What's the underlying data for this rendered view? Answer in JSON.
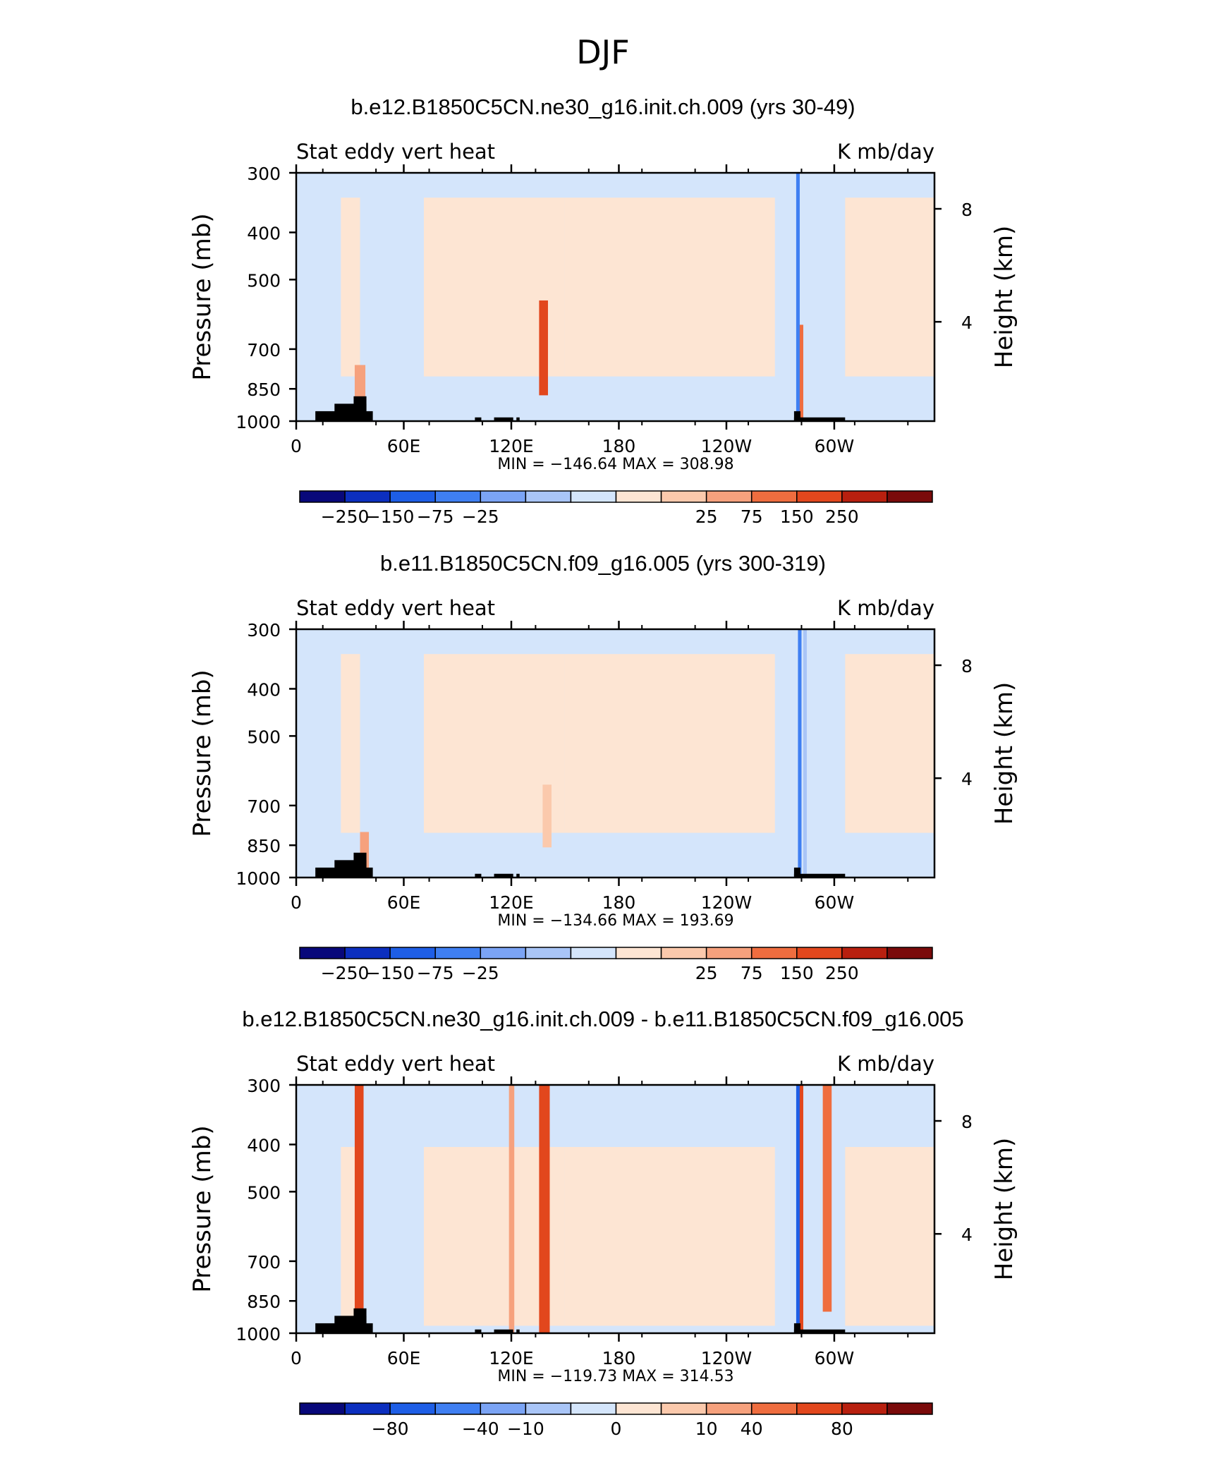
{
  "figure": {
    "title": "DJF"
  },
  "chart_data": [
    {
      "type": "heatmap",
      "title": "b.e12.B1850C5CN.ne30_g16.init.ch.009 (yrs 30-49)",
      "left_label": "Stat eddy vert heat",
      "right_label": "K mb/day",
      "ylabel": "Pressure (mb)",
      "ylabel_right": "Height (km)",
      "y_ticks": [
        "300",
        "400",
        "500",
        "700",
        "850",
        "1000"
      ],
      "y_ticks_right": [
        "8",
        "4"
      ],
      "x_ticks": [
        "0",
        "60E",
        "120E",
        "180",
        "120W",
        "60W"
      ],
      "stats": "MIN = −146.64   MAX = 308.98",
      "min": -146.64,
      "max": 308.98,
      "colorbar_labels": [
        "−250",
        "−150",
        "−75",
        "−25",
        "25",
        "75",
        "150",
        "250"
      ],
      "colorbar_colors": [
        "#08087a",
        "#0c2fbf",
        "#1e5ee6",
        "#3f7ff2",
        "#7ba4f5",
        "#a9c5f7",
        "#d4e5fb",
        "#fde5d3",
        "#fbc9ac",
        "#f6a17d",
        "#ef6d3f",
        "#e2471d",
        "#b8200f",
        "#7a0a0a"
      ],
      "features": [
        {
          "x": 33,
          "width": 6,
          "value": 110,
          "bottom": 1000,
          "top": 760
        },
        {
          "x": 137,
          "width": 5,
          "value": 180,
          "bottom": 880,
          "top": 560
        },
        {
          "x": 283,
          "width": 3,
          "value": 140,
          "bottom": 1000,
          "top": 630
        },
        {
          "x": 282,
          "width": 2,
          "value": -146,
          "bottom": 1000,
          "top": 300
        }
      ]
    },
    {
      "type": "heatmap",
      "title": "b.e11.B1850C5CN.f09_g16.005 (yrs 300-319)",
      "left_label": "Stat eddy vert heat",
      "right_label": "K mb/day",
      "ylabel": "Pressure (mb)",
      "ylabel_right": "Height (km)",
      "y_ticks": [
        "300",
        "400",
        "500",
        "700",
        "850",
        "1000"
      ],
      "y_ticks_right": [
        "8",
        "4"
      ],
      "x_ticks": [
        "0",
        "60E",
        "120E",
        "180",
        "120W",
        "60W"
      ],
      "stats": "MIN = −134.66   MAX = 193.69",
      "min": -134.66,
      "max": 193.69,
      "colorbar_labels": [
        "−250",
        "−150",
        "−75",
        "−25",
        "25",
        "75",
        "150",
        "250"
      ],
      "colorbar_colors": [
        "#08087a",
        "#0c2fbf",
        "#1e5ee6",
        "#3f7ff2",
        "#7ba4f5",
        "#a9c5f7",
        "#d4e5fb",
        "#fde5d3",
        "#fbc9ac",
        "#f6a17d",
        "#ef6d3f",
        "#e2471d",
        "#b8200f",
        "#7a0a0a"
      ],
      "features": [
        {
          "x": 36,
          "width": 5,
          "value": 90,
          "bottom": 1000,
          "top": 800
        },
        {
          "x": 139,
          "width": 5,
          "value": 70,
          "bottom": 860,
          "top": 640
        },
        {
          "x": 283,
          "width": 2,
          "value": -134,
          "bottom": 1000,
          "top": 300
        },
        {
          "x": 286,
          "width": 2,
          "value": -60,
          "bottom": 1000,
          "top": 300
        }
      ]
    },
    {
      "type": "heatmap",
      "title": "b.e12.B1850C5CN.ne30_g16.init.ch.009 - b.e11.B1850C5CN.f09_g16.005",
      "left_label": "Stat eddy vert heat",
      "right_label": "K mb/day",
      "ylabel": "Pressure (mb)",
      "ylabel_right": "Height (km)",
      "y_ticks": [
        "300",
        "400",
        "500",
        "700",
        "850",
        "1000"
      ],
      "y_ticks_right": [
        "8",
        "4"
      ],
      "x_ticks": [
        "0",
        "60E",
        "120E",
        "180",
        "120W",
        "60W"
      ],
      "stats": "MIN = −119.73   MAX = 314.53",
      "min": -119.73,
      "max": 314.53,
      "colorbar_labels": [
        "−80",
        "−40",
        "−10",
        "0",
        "10",
        "40",
        "80"
      ],
      "colorbar_colors": [
        "#08087a",
        "#0c2fbf",
        "#1e5ee6",
        "#3f7ff2",
        "#7ba4f5",
        "#a9c5f7",
        "#d4e5fb",
        "#fde5d3",
        "#fbc9ac",
        "#f6a17d",
        "#ef6d3f",
        "#e2471d",
        "#b8200f",
        "#7a0a0a"
      ],
      "features": [
        {
          "x": 33,
          "width": 5,
          "value": 60,
          "bottom": 1000,
          "top": 300
        },
        {
          "x": 120,
          "width": 3,
          "value": 40,
          "bottom": 1000,
          "top": 300
        },
        {
          "x": 137,
          "width": 6,
          "value": 60,
          "bottom": 1000,
          "top": 300
        },
        {
          "x": 283,
          "width": 3,
          "value": 70,
          "bottom": 1000,
          "top": 300
        },
        {
          "x": 297,
          "width": 5,
          "value": 45,
          "bottom": 900,
          "top": 300
        },
        {
          "x": 282,
          "width": 2,
          "value": -60,
          "bottom": 1000,
          "top": 300
        }
      ]
    }
  ]
}
